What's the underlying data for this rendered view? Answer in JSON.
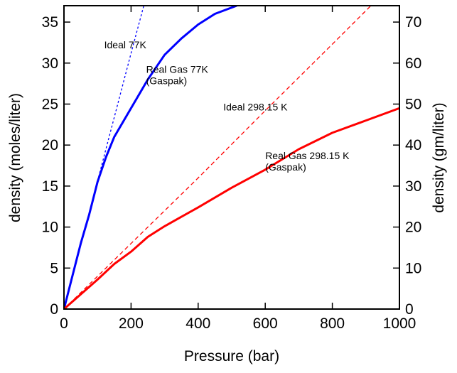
{
  "chart_data": {
    "type": "line",
    "xlabel": "Pressure (bar)",
    "ylabel_left": "density (moles/liter)",
    "ylabel_right": "density (gm/liter)",
    "xlim": [
      0,
      1000
    ],
    "ylim_left": [
      0,
      37
    ],
    "ylim_right": [
      0,
      74
    ],
    "grid": false,
    "x_ticks": [
      "0",
      "200",
      "400",
      "600",
      "800",
      "1000"
    ],
    "y_ticks_left": [
      "0",
      "5",
      "10",
      "15",
      "20",
      "25",
      "30",
      "35"
    ],
    "y_ticks_right": [
      "0",
      "10",
      "20",
      "30",
      "40",
      "50",
      "60",
      "70"
    ],
    "series": [
      {
        "key": "ideal77",
        "color": "#0000ff",
        "style": "dotted",
        "points": [
          [
            0,
            0
          ],
          [
            50,
            7.8
          ],
          [
            100,
            15.6
          ],
          [
            150,
            23.4
          ],
          [
            200,
            31.2
          ],
          [
            238,
            37
          ]
        ]
      },
      {
        "key": "real77",
        "color": "#0000ff",
        "style": "solid",
        "points": [
          [
            0,
            0
          ],
          [
            25,
            4
          ],
          [
            50,
            8
          ],
          [
            75,
            11.5
          ],
          [
            100,
            15.5
          ],
          [
            125,
            18.5
          ],
          [
            150,
            21
          ],
          [
            200,
            24.5
          ],
          [
            250,
            28
          ],
          [
            300,
            31
          ],
          [
            350,
            33
          ],
          [
            400,
            34.7
          ],
          [
            450,
            36
          ],
          [
            515,
            37
          ]
        ]
      },
      {
        "key": "ideal298",
        "color": "#ff0000",
        "style": "dashed",
        "points": [
          [
            0,
            0
          ],
          [
            200,
            8
          ],
          [
            400,
            16
          ],
          [
            600,
            24.2
          ],
          [
            800,
            32.3
          ],
          [
            915,
            37
          ]
        ]
      },
      {
        "key": "real298",
        "color": "#ff0000",
        "style": "solid",
        "points": [
          [
            0,
            0
          ],
          [
            50,
            1.8
          ],
          [
            100,
            3.6
          ],
          [
            150,
            5.5
          ],
          [
            200,
            7
          ],
          [
            250,
            8.8
          ],
          [
            300,
            10.1
          ],
          [
            400,
            12.4
          ],
          [
            500,
            14.8
          ],
          [
            600,
            17
          ],
          [
            700,
            19.5
          ],
          [
            800,
            21.5
          ],
          [
            900,
            23
          ],
          [
            1000,
            24.5
          ]
        ]
      }
    ],
    "annotations": [
      {
        "key": "a1",
        "lines": [
          "Ideal 77K"
        ],
        "x": 120,
        "y": 31.8
      },
      {
        "key": "a2",
        "lines": [
          "Real Gas 77K",
          "(Gaspak)"
        ],
        "x": 245,
        "y": 28.8
      },
      {
        "key": "a3",
        "lines": [
          "Ideal 298.15 K"
        ],
        "x": 475,
        "y": 24.2
      },
      {
        "key": "a4",
        "lines": [
          "Real Gas 298.15 K",
          "(Gaspak)"
        ],
        "x": 600,
        "y": 18.3
      }
    ]
  }
}
